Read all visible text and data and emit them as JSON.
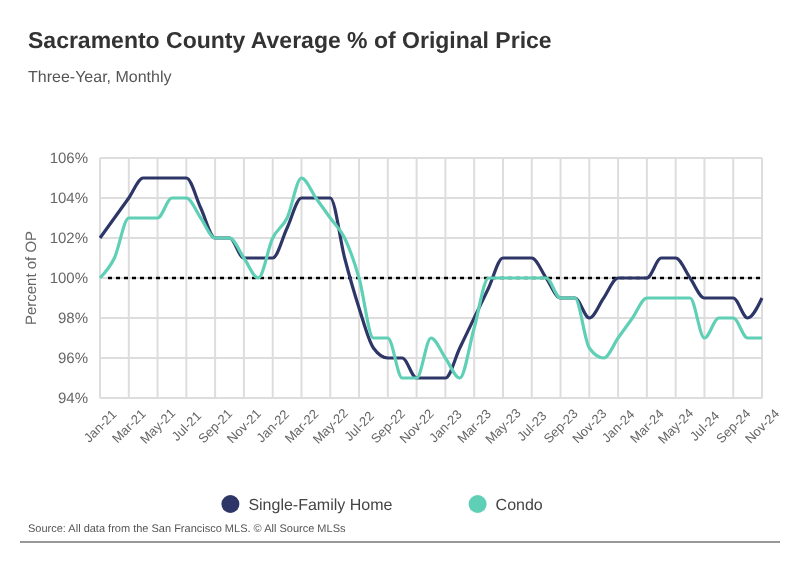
{
  "chart_data": {
    "type": "line",
    "title": "Sacramento County Average % of Original Price",
    "subtitle": "Three-Year, Monthly",
    "ylabel": "Percent of OP",
    "categories": [
      "Jan-21",
      null,
      "Mar-21",
      null,
      "May-21",
      null,
      "Jul-21",
      null,
      "Sep-21",
      null,
      "Nov-21",
      null,
      "Jan-22",
      null,
      "Mar-22",
      null,
      "May-22",
      null,
      "Jul-22",
      null,
      "Sep-22",
      null,
      "Nov-22",
      null,
      "Jan-23",
      null,
      "Mar-23",
      null,
      "May-23",
      null,
      "Jul-23",
      null,
      "Sep-23",
      null,
      "Nov-23",
      null,
      "Jan-24",
      null,
      "Mar-24",
      null,
      "May-24",
      null,
      "Jul-24",
      null,
      "Sep-24",
      null,
      "Nov-24"
    ],
    "series": [
      {
        "name": "Single-Family Home",
        "color": "#2e3668",
        "values": [
          102,
          103,
          104,
          105,
          105,
          105,
          105,
          103.5,
          102,
          102,
          101,
          101,
          101,
          102.5,
          104,
          104,
          104,
          101,
          98.5,
          96.5,
          96,
          96,
          95,
          95,
          95,
          96.5,
          98,
          99.5,
          101,
          101,
          101,
          100,
          99,
          99,
          98,
          99,
          100,
          100,
          100,
          101,
          101,
          100,
          99,
          99,
          99,
          98,
          99
        ]
      },
      {
        "name": "Condo",
        "color": "#5fcfb5",
        "values": [
          100,
          101,
          103,
          103,
          103,
          104,
          104,
          103,
          102,
          102,
          101,
          100,
          102,
          103,
          105,
          104,
          103,
          102,
          100,
          97,
          97,
          95,
          95,
          97,
          96,
          95,
          97.5,
          100,
          100,
          100,
          100,
          100,
          99,
          99,
          96.5,
          96,
          97,
          98,
          99,
          99,
          99,
          99,
          97,
          98,
          98,
          97,
          97
        ]
      }
    ],
    "ylim": [
      94,
      106
    ],
    "yticks": [
      {
        "value": 94,
        "label": "94%"
      },
      {
        "value": 96,
        "label": "96%"
      },
      {
        "value": 98,
        "label": "98%"
      },
      {
        "value": 100,
        "label": "100%"
      },
      {
        "value": 102,
        "label": "102%"
      },
      {
        "value": 104,
        "label": "104%"
      },
      {
        "value": 106,
        "label": "106%"
      }
    ],
    "ref_lines": [
      {
        "axis": "y",
        "value": 100,
        "color": "#000000",
        "line_style": "dotted"
      }
    ],
    "grid": true,
    "legend": "bottom",
    "annotations": [
      "Source: All data from the San Francisco MLS. © All Source MLSs"
    ]
  }
}
